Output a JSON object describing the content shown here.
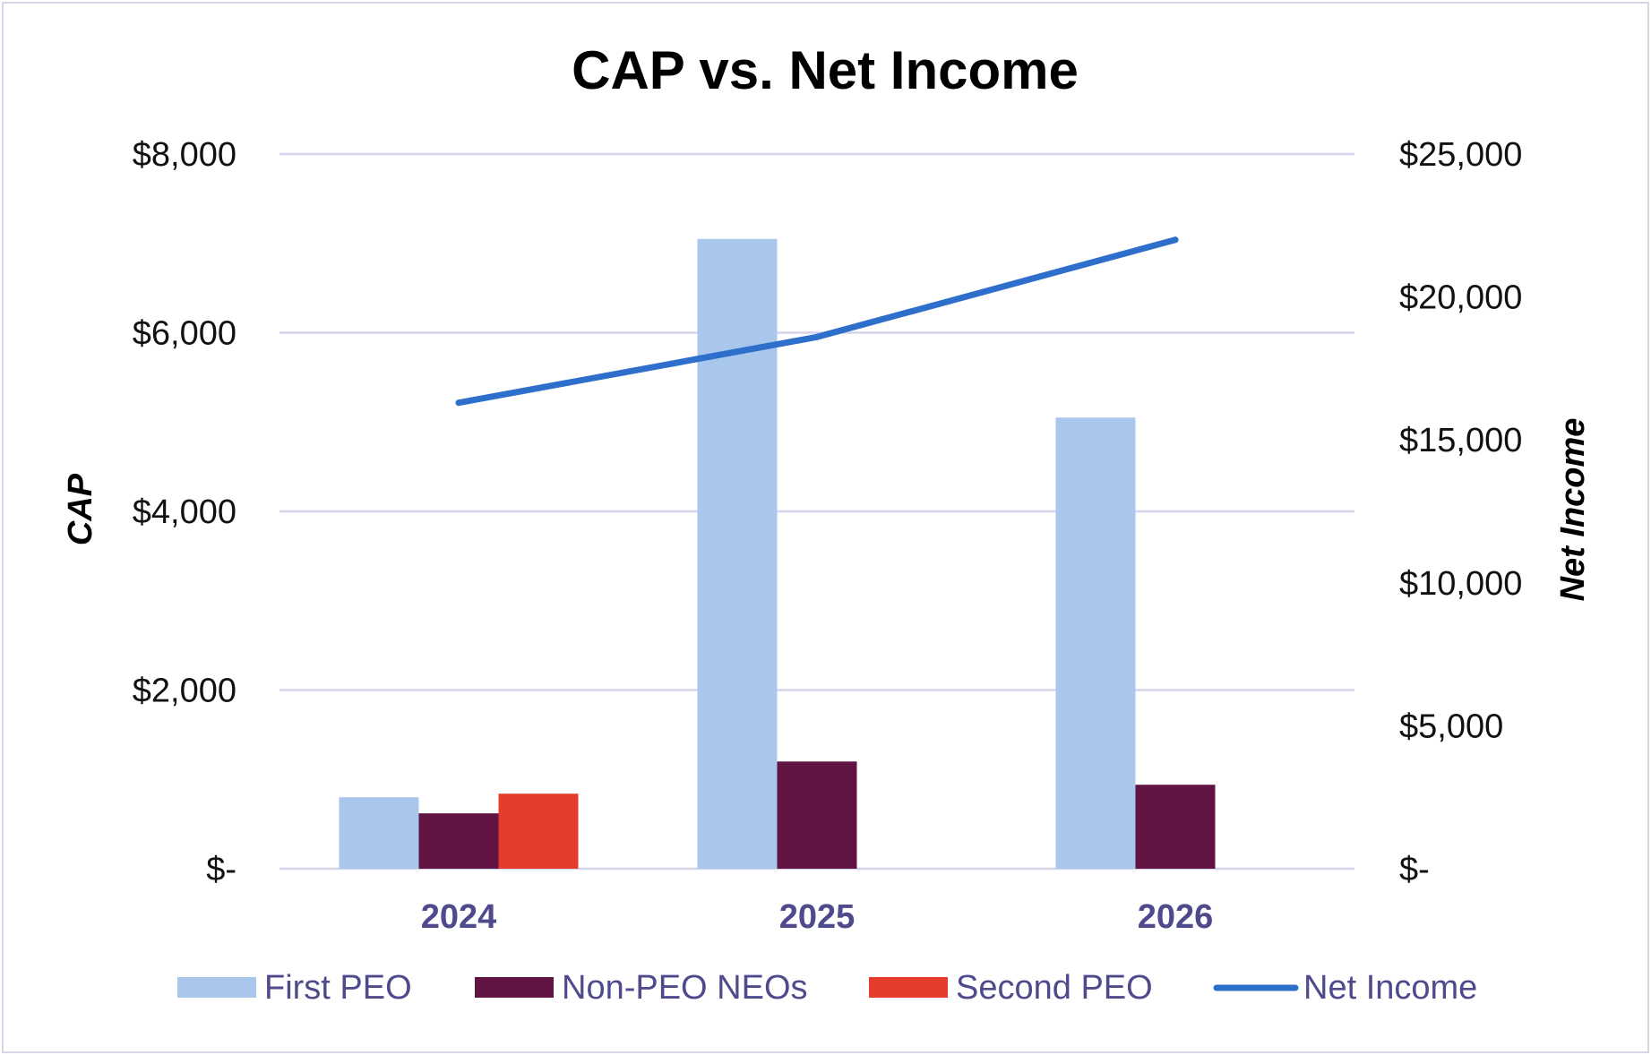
{
  "chart_data": {
    "type": "bar",
    "title": "CAP vs. Net Income",
    "categories": [
      "2024",
      "2025",
      "2026"
    ],
    "y_left": {
      "label": "CAP",
      "ylim": [
        0,
        8000
      ],
      "ticks": [
        0,
        2000,
        4000,
        6000,
        8000
      ],
      "tick_labels": [
        "$-",
        "$2,000",
        "$4,000",
        "$6,000",
        "$8,000"
      ]
    },
    "y_right": {
      "label": "Net Income",
      "ylim": [
        0,
        25000
      ],
      "ticks": [
        0,
        5000,
        10000,
        15000,
        20000,
        25000
      ],
      "tick_labels": [
        "$-",
        "$5,000",
        "$10,000",
        "$15,000",
        "$20,000",
        "$25,000"
      ]
    },
    "series": [
      {
        "name": "First PEO",
        "kind": "bar",
        "axis": "left",
        "color": "#a9c6ed",
        "values": [
          800,
          7050,
          5050
        ]
      },
      {
        "name": "Non-PEO NEOs",
        "kind": "bar",
        "axis": "left",
        "color": "#611441",
        "values": [
          620,
          1200,
          940
        ]
      },
      {
        "name": "Second PEO",
        "kind": "bar",
        "axis": "left",
        "color": "#e53c2e",
        "values": [
          840,
          null,
          null
        ]
      },
      {
        "name": "Net Income",
        "kind": "line",
        "axis": "right",
        "color": "#2e6fcc",
        "values": [
          16300,
          18600,
          22000
        ]
      }
    ],
    "grid": true,
    "legend_position": "bottom"
  }
}
